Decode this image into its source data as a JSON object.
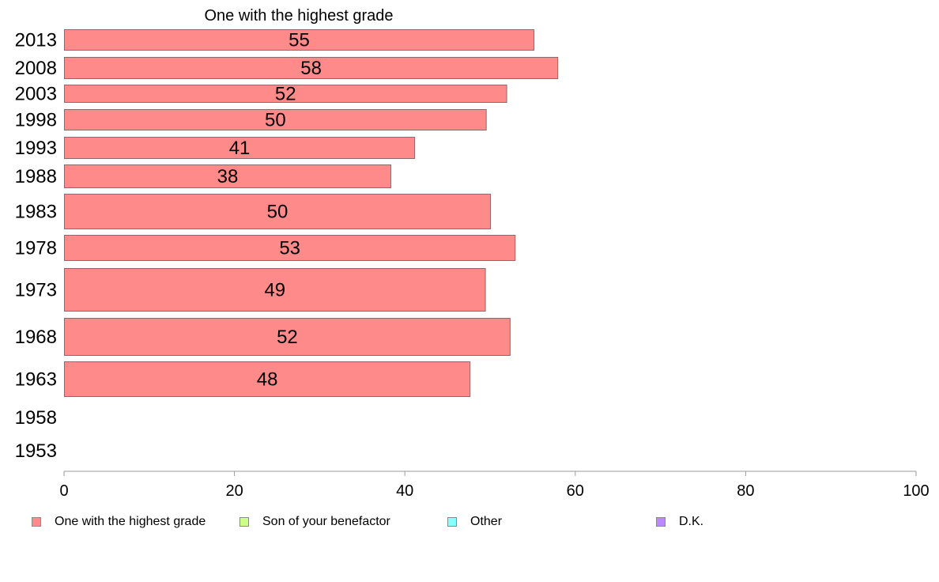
{
  "chart_data": {
    "type": "bar",
    "orientation": "horizontal",
    "title": "One with the highest grade",
    "categories": [
      "2013",
      "2008",
      "2003",
      "1998",
      "1993",
      "1988",
      "1983",
      "1978",
      "1973",
      "1968",
      "1963",
      "1958",
      "1953"
    ],
    "series": [
      {
        "name": "One with the highest grade",
        "color": "#ff8a8a",
        "values": [
          55.2,
          58.0,
          52.0,
          49.6,
          41.2,
          38.4,
          50.1,
          53.0,
          49.5,
          52.4,
          47.7,
          null,
          null
        ],
        "labels": [
          "55",
          "58",
          "52",
          "50",
          "41",
          "38",
          "50",
          "53",
          "49",
          "52",
          "48",
          "",
          ""
        ]
      }
    ],
    "xlim": [
      0,
      100
    ],
    "xticks": [
      "0",
      "20",
      "40",
      "60",
      "80",
      "100"
    ],
    "grid": false,
    "legend_position": "bottom"
  },
  "legend": [
    {
      "label": "One with the highest grade",
      "color": "#ff8a8a"
    },
    {
      "label": "Son of your benefactor",
      "color": "#ccff88"
    },
    {
      "label": "Other",
      "color": "#88ffff"
    },
    {
      "label": "D.K.",
      "color": "#bb88ff"
    }
  ]
}
